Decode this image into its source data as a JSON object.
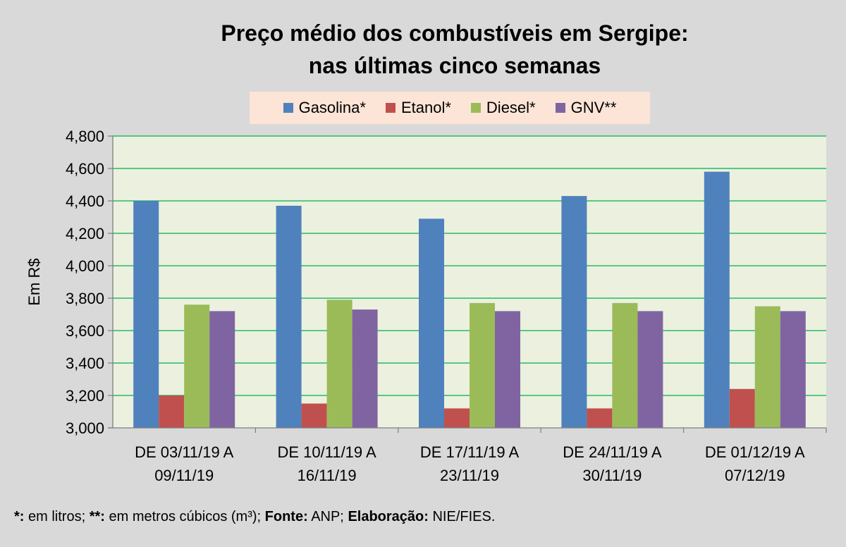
{
  "chart_data": {
    "type": "bar",
    "title": [
      "Preço médio dos combustíveis em Sergipe:",
      "nas últimas cinco semanas"
    ],
    "ylabel": "Em R$",
    "xlabel": "",
    "ylim": [
      3.0,
      4.8
    ],
    "yticks": [
      "3,000",
      "3,200",
      "3,400",
      "3,600",
      "3,800",
      "4,000",
      "4,200",
      "4,400",
      "4,600",
      "4,800"
    ],
    "categories": [
      [
        "DE 03/11/19 A",
        "09/11/19"
      ],
      [
        "DE 10/11/19 A",
        "16/11/19"
      ],
      [
        "DE 17/11/19 A",
        "23/11/19"
      ],
      [
        "DE 24/11/19 A",
        "30/11/19"
      ],
      [
        "DE 01/12/19 A",
        "07/12/19"
      ]
    ],
    "series": [
      {
        "name": "Gasolina*",
        "color": "#4f81bd",
        "values": [
          4.4,
          4.37,
          4.29,
          4.43,
          4.58
        ]
      },
      {
        "name": "Etanol*",
        "color": "#c0504d",
        "values": [
          3.2,
          3.15,
          3.12,
          3.12,
          3.24
        ]
      },
      {
        "name": "Diesel*",
        "color": "#9bbb59",
        "values": [
          3.76,
          3.79,
          3.77,
          3.77,
          3.75
        ]
      },
      {
        "name": "GNV**",
        "color": "#8064a2",
        "values": [
          3.72,
          3.73,
          3.72,
          3.72,
          3.72
        ]
      }
    ],
    "grid": true,
    "grid_color": "#00b050",
    "plot_background": "#ebf1de",
    "legend_position": "top"
  },
  "footnote": {
    "p1": "*:",
    "p2": " em litros; ",
    "p3": "**:",
    "p4": " em metros cúbicos (m³); ",
    "p5": "Fonte:",
    "p6": " ANP; ",
    "p7": "Elaboração:",
    "p8": " NIE/FIES."
  }
}
